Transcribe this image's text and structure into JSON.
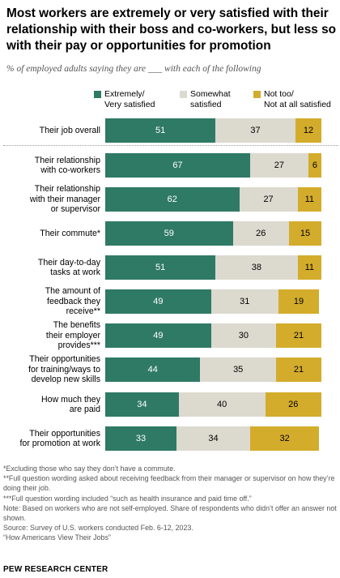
{
  "title": "Most workers are extremely or very satisfied with their relationship with their boss and co-workers, but less so with their pay or opportunities for promotion",
  "subtitle": "% of employed adults saying they are ___ with each of the following",
  "colors": {
    "extremely": "#2f7a65",
    "somewhat": "#dcd9cf",
    "not": "#d4ac2c"
  },
  "legend": [
    {
      "key": "extremely",
      "label": "Extremely/\nVery satisfied"
    },
    {
      "key": "somewhat",
      "label": "Somewhat\nsatisfied"
    },
    {
      "key": "not",
      "label": "Not too/\nNot at all satisfied"
    }
  ],
  "chart_data": {
    "type": "bar",
    "orientation": "horizontal",
    "stacked": true,
    "categories": [
      "Their job overall",
      "Their relationship\nwith co-workers",
      "Their relationship\nwith their manager\nor supervisor",
      "Their commute*",
      "Their day-to-day\ntasks at work",
      "The amount of\nfeedback they\nreceive**",
      "The benefits\ntheir employer\nprovides***",
      "Their opportunities\nfor training/ways to\ndevelop new skills",
      "How much they\nare paid",
      "Their opportunities\nfor promotion at work"
    ],
    "series": [
      {
        "name": "Extremely/Very satisfied",
        "key": "extremely",
        "values": [
          51,
          67,
          62,
          59,
          51,
          49,
          49,
          44,
          34,
          33
        ]
      },
      {
        "name": "Somewhat satisfied",
        "key": "somewhat",
        "values": [
          37,
          27,
          27,
          26,
          38,
          31,
          30,
          35,
          40,
          34
        ]
      },
      {
        "name": "Not too/Not at all satisfied",
        "key": "not",
        "values": [
          12,
          6,
          11,
          15,
          11,
          19,
          21,
          21,
          26,
          32
        ]
      }
    ],
    "xlim": [
      0,
      100
    ],
    "legend_position": "top"
  },
  "notes": [
    "*Excluding those who say they don’t have a commute.",
    "**Full question wording asked about receiving feedback from their manager or supervisor on how they’re doing their job.",
    "***Full question wording included “such as health insurance and paid time off.”",
    "Note: Based on workers who are not self-employed. Share of respondents who didn’t offer an answer not shown.",
    "Source: Survey of U.S. workers conducted Feb. 6-12, 2023.",
    "“How Americans View Their Jobs”"
  ],
  "source_brand": "PEW RESEARCH CENTER"
}
